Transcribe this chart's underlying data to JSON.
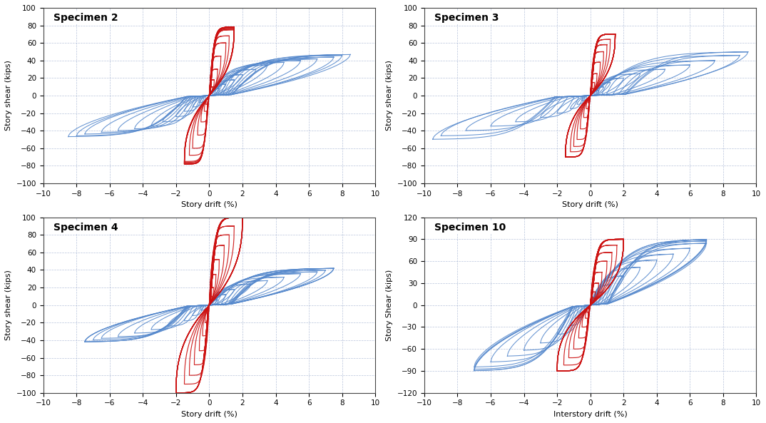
{
  "specimens": [
    {
      "title": "Specimen 2",
      "xlabel": "Story drift (%)",
      "ylabel": "Story shear (kips)",
      "xlim": [
        -10,
        10
      ],
      "ylim": [
        -100,
        100
      ],
      "xticks": [
        -10,
        -8,
        -6,
        -4,
        -2,
        0,
        2,
        4,
        6,
        8,
        10
      ],
      "yticks": [
        -100,
        -80,
        -60,
        -40,
        -20,
        0,
        20,
        40,
        60,
        80,
        100
      ],
      "blue_amps": [
        0.6,
        1.0,
        1.5,
        2.0,
        2.8,
        3.5,
        4.5,
        5.5,
        6.5,
        7.5,
        8.0,
        8.5
      ],
      "blue_shears": [
        8,
        13,
        18,
        24,
        30,
        35,
        38,
        40,
        42,
        44,
        46,
        47
      ],
      "blue_pinch": [
        0.3,
        0.28,
        0.26,
        0.25,
        0.24,
        0.23,
        0.22,
        0.2,
        0.19,
        0.18,
        0.17,
        0.16
      ],
      "red_amps": [
        0.2,
        0.3,
        0.5,
        0.7,
        1.0,
        1.2,
        1.5,
        1.5,
        1.5,
        1.5,
        1.5,
        1.5,
        1.5,
        1.5
      ],
      "red_shears": [
        10,
        18,
        30,
        45,
        60,
        68,
        75,
        76,
        77,
        78,
        78,
        78,
        78,
        78
      ],
      "red_pinch": [
        0.08,
        0.07,
        0.06,
        0.05,
        0.05,
        0.04,
        0.04,
        0.04,
        0.04,
        0.04,
        0.04,
        0.04,
        0.04,
        0.04
      ]
    },
    {
      "title": "Specimen 3",
      "xlabel": "Story drift (%)",
      "ylabel": "Story shear (kips)",
      "xlim": [
        -10,
        10
      ],
      "ylim": [
        -100,
        100
      ],
      "xticks": [
        -10,
        -8,
        -6,
        -4,
        -2,
        0,
        2,
        4,
        6,
        8,
        10
      ],
      "yticks": [
        -100,
        -80,
        -60,
        -40,
        -20,
        0,
        20,
        40,
        60,
        80,
        100
      ],
      "blue_amps": [
        0.5,
        0.8,
        1.2,
        2.0,
        3.0,
        4.5,
        6.0,
        7.5,
        9.0,
        9.5
      ],
      "blue_shears": [
        6,
        10,
        15,
        20,
        25,
        30,
        35,
        40,
        46,
        50
      ],
      "blue_pinch": [
        0.4,
        0.38,
        0.36,
        0.34,
        0.32,
        0.3,
        0.28,
        0.26,
        0.24,
        0.22
      ],
      "red_amps": [
        0.15,
        0.25,
        0.4,
        0.6,
        0.8,
        1.0,
        1.2,
        1.5,
        1.5,
        1.5,
        1.5,
        1.5,
        1.5,
        1.5,
        1.5,
        1.5
      ],
      "red_shears": [
        8,
        15,
        25,
        38,
        50,
        58,
        64,
        70,
        70,
        70,
        70,
        70,
        70,
        70,
        70,
        70
      ],
      "red_pinch": [
        0.07,
        0.06,
        0.05,
        0.05,
        0.04,
        0.04,
        0.03,
        0.03,
        0.03,
        0.03,
        0.03,
        0.03,
        0.03,
        0.03,
        0.03,
        0.03
      ]
    },
    {
      "title": "Specimen 4",
      "xlabel": "Story drift (%)",
      "ylabel": "Story shear (kips)",
      "xlim": [
        -10,
        10
      ],
      "ylim": [
        -100,
        100
      ],
      "xticks": [
        -10,
        -8,
        -6,
        -4,
        -2,
        0,
        2,
        4,
        6,
        8,
        10
      ],
      "yticks": [
        -100,
        -80,
        -60,
        -40,
        -20,
        0,
        20,
        40,
        60,
        80,
        100
      ],
      "blue_amps": [
        0.5,
        1.0,
        1.5,
        2.5,
        3.5,
        4.5,
        5.5,
        6.5,
        7.0,
        7.5,
        7.5,
        7.5
      ],
      "blue_shears": [
        6,
        12,
        18,
        24,
        28,
        32,
        36,
        38,
        40,
        42,
        42,
        42
      ],
      "blue_pinch": [
        0.35,
        0.33,
        0.31,
        0.29,
        0.27,
        0.25,
        0.23,
        0.21,
        0.19,
        0.17,
        0.16,
        0.15
      ],
      "red_amps": [
        0.15,
        0.25,
        0.4,
        0.6,
        0.9,
        1.2,
        1.5,
        2.0,
        2.0,
        2.0,
        2.0,
        2.0,
        2.0,
        2.0,
        2.0,
        2.0
      ],
      "red_shears": [
        10,
        20,
        35,
        52,
        68,
        80,
        90,
        100,
        100,
        100,
        100,
        100,
        100,
        100,
        100,
        100
      ],
      "red_pinch": [
        0.07,
        0.06,
        0.05,
        0.04,
        0.04,
        0.03,
        0.03,
        0.03,
        0.03,
        0.03,
        0.03,
        0.03,
        0.03,
        0.03,
        0.03,
        0.03
      ]
    },
    {
      "title": "Specimen 10",
      "xlabel": "Interstory drift (%)",
      "ylabel": "Story Shear (kips)",
      "xlim": [
        -10,
        10
      ],
      "ylim": [
        -120,
        120
      ],
      "xticks": [
        -10,
        -8,
        -6,
        -4,
        -2,
        0,
        2,
        4,
        6,
        8,
        10
      ],
      "yticks": [
        -120,
        -90,
        -60,
        -30,
        0,
        30,
        60,
        90,
        120
      ],
      "blue_amps": [
        0.4,
        0.8,
        1.2,
        2.0,
        3.0,
        4.0,
        5.0,
        6.0,
        7.0,
        7.0,
        7.0,
        7.0
      ],
      "blue_shears": [
        10,
        18,
        28,
        40,
        52,
        62,
        70,
        78,
        85,
        88,
        90,
        90
      ],
      "blue_pinch": [
        0.3,
        0.28,
        0.26,
        0.24,
        0.22,
        0.2,
        0.18,
        0.17,
        0.16,
        0.15,
        0.15,
        0.15
      ],
      "red_amps": [
        0.2,
        0.3,
        0.5,
        0.7,
        1.0,
        1.3,
        1.6,
        2.0,
        2.0,
        2.0,
        2.0,
        2.0,
        2.0,
        2.0,
        2.0,
        2.0
      ],
      "red_shears": [
        10,
        18,
        30,
        45,
        60,
        72,
        82,
        90,
        90,
        90,
        90,
        90,
        90,
        90,
        90,
        90
      ],
      "red_pinch": [
        0.07,
        0.06,
        0.05,
        0.05,
        0.04,
        0.04,
        0.03,
        0.03,
        0.03,
        0.03,
        0.03,
        0.03,
        0.03,
        0.03,
        0.03,
        0.03
      ]
    }
  ],
  "blue_color": "#5588CC",
  "red_color": "#CC1111",
  "background_color": "#FFFFFF",
  "grid_color": "#99AACC",
  "title_fontsize": 10,
  "label_fontsize": 8,
  "tick_fontsize": 7.5,
  "linewidth_blue": 0.75,
  "linewidth_red": 0.85
}
